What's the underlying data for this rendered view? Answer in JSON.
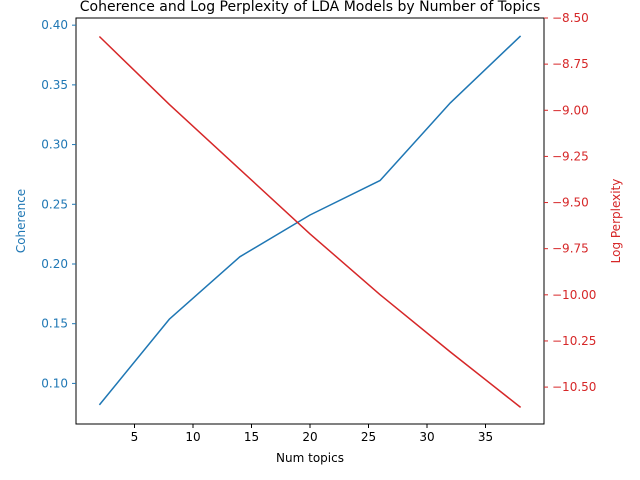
{
  "chart_data": {
    "type": "line",
    "title": "Coherence and Log Perplexity of LDA Models by Number of Topics",
    "xlabel": "Num topics",
    "xlim": [
      0,
      40
    ],
    "xticks": [
      5,
      10,
      15,
      20,
      25,
      30,
      35
    ],
    "x": [
      2,
      8,
      14,
      20,
      26,
      32,
      38
    ],
    "grid": false,
    "legend": "none",
    "axes": {
      "left": {
        "label": "Coherence",
        "color": "#1f77b4",
        "ylim": [
          0.066,
          0.406
        ],
        "ticks": [
          0.1,
          0.15,
          0.2,
          0.25,
          0.3,
          0.35,
          0.4
        ],
        "tick_labels": [
          "0.10",
          "0.15",
          "0.20",
          "0.25",
          "0.30",
          "0.35",
          "0.40"
        ]
      },
      "right": {
        "label": "Log Perplexity",
        "color": "#d62728",
        "ylim": [
          -10.7,
          -8.5
        ],
        "ticks": [
          -8.5,
          -8.75,
          -9.0,
          -9.25,
          -9.5,
          -9.75,
          -10.0,
          -10.25,
          -10.5
        ],
        "tick_labels": [
          "−8.50",
          "−8.75",
          "−9.00",
          "−9.25",
          "−9.50",
          "−9.75",
          "−10.00",
          "−10.25",
          "−10.50"
        ]
      }
    },
    "series": [
      {
        "axis": "left",
        "color": "#1f77b4",
        "values": [
          0.082,
          0.154,
          0.206,
          0.241,
          0.27,
          0.335,
          0.391
        ]
      },
      {
        "axis": "right",
        "color": "#d62728",
        "values": [
          -8.6,
          -8.97,
          -9.32,
          -9.67,
          -10.0,
          -10.31,
          -10.61
        ]
      }
    ]
  }
}
